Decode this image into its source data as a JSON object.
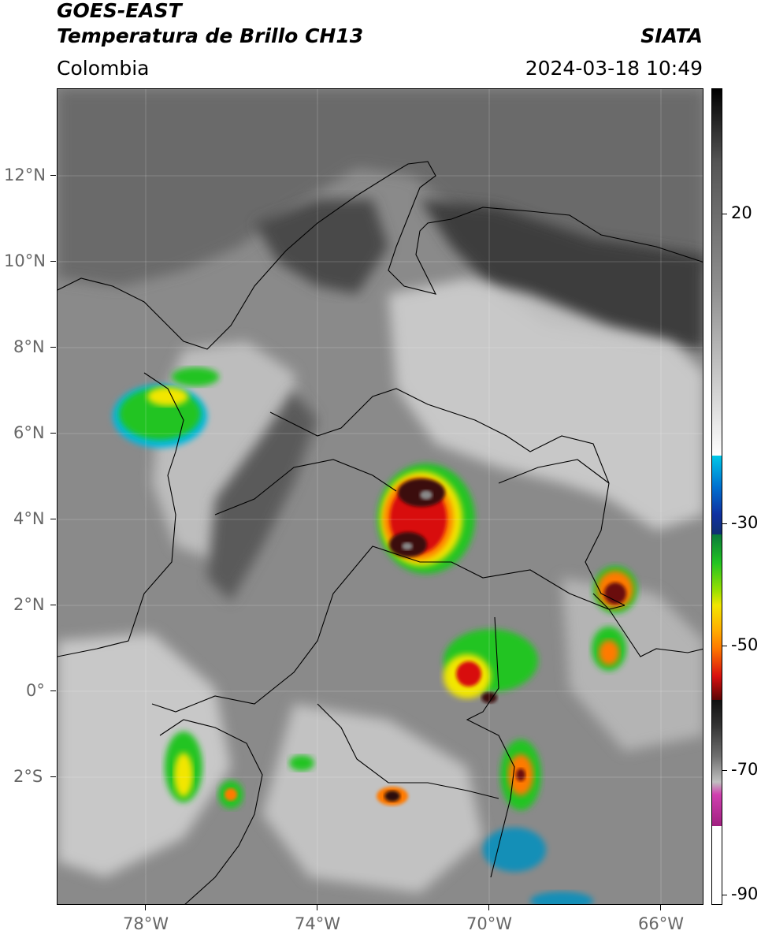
{
  "header": {
    "satellite": "GOES-EAST",
    "product": "Temperatura de Brillo CH13",
    "brand": "SIATA",
    "region": "Colombia",
    "timestamp": "2024-03-18 10:49"
  },
  "map": {
    "lat_labels": [
      "12°N",
      "10°N",
      "8°N",
      "6°N",
      "4°N",
      "2°N",
      "0°",
      "2°S"
    ],
    "lon_labels": [
      "78°W",
      "74°W",
      "70°W",
      "66°W"
    ],
    "lat_range": [
      -5,
      14
    ],
    "lon_range": [
      -80,
      -65
    ]
  },
  "colorbar": {
    "tick_labels": [
      "20",
      "-30",
      "-50",
      "-70",
      "-90"
    ],
    "colors": {
      "warm_gray": "#4a4a4a",
      "cyan": "#00c8e8",
      "blue": "#1030a0",
      "green": "#22c422",
      "yellow": "#f2e600",
      "orange": "#ff7a00",
      "red": "#d81010",
      "dark": "#111111",
      "magenta": "#d040b0"
    }
  }
}
